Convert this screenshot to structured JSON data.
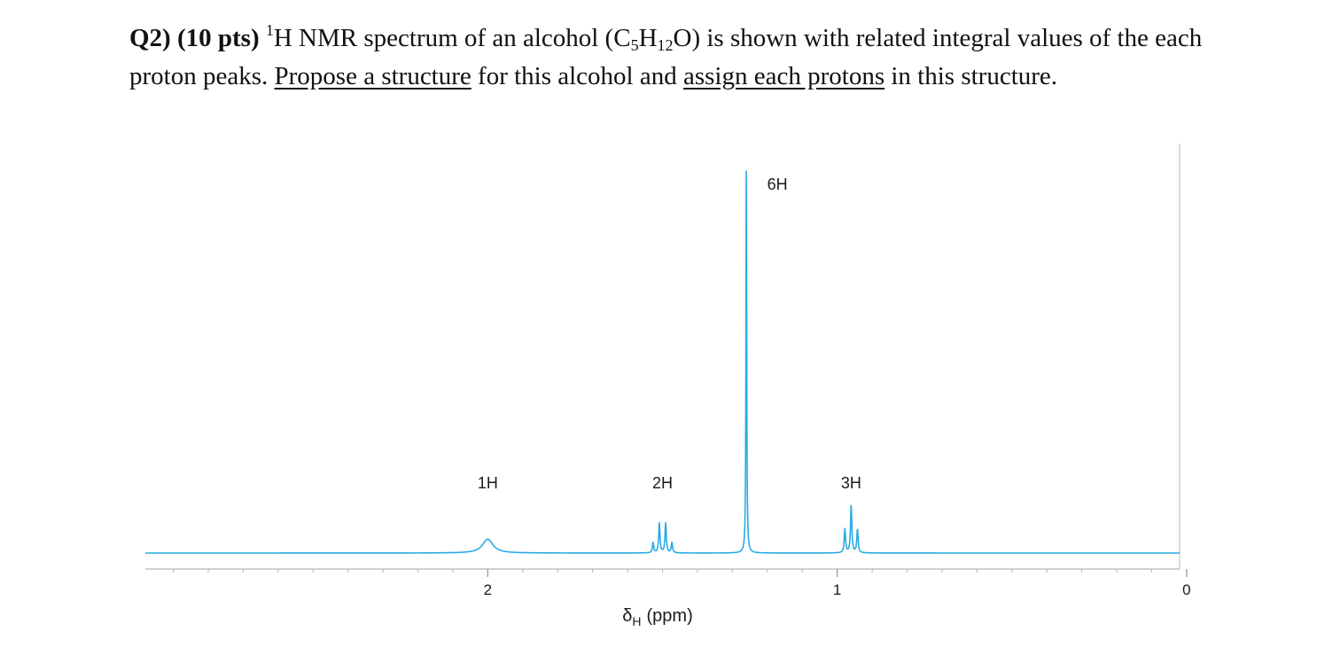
{
  "question": {
    "label": "Q2)",
    "points": "(10 pts)",
    "sup_one": "1",
    "text_a": "H NMR spectrum of an alcohol (C",
    "sub_5": "5",
    "text_b": "H",
    "sub_12": "12",
    "text_c": "O) is shown with related integral values of the each proton peaks.",
    "link_structure": "Propose a structure",
    "text_d": "for this alcohol and",
    "link_assign": "assign each protons",
    "text_e": "in this structure."
  },
  "chart_data": {
    "type": "line",
    "xlabel_main": "δ",
    "xlabel_sub": "H",
    "xlabel_unit": "(ppm)",
    "xlim": [
      2.98,
      0.02
    ],
    "xticks": [
      2,
      1,
      0
    ],
    "xtick_labels": [
      "2",
      "1",
      "0"
    ],
    "line_color": "#29abe2",
    "peaks": [
      {
        "shift": 2.0,
        "integral": "1H",
        "multiplicity": "broad singlet",
        "rel_height": 0.035
      },
      {
        "shift": 1.5,
        "integral": "2H",
        "multiplicity": "multiplet",
        "rel_height": 0.075
      },
      {
        "shift": 1.26,
        "integral": "6H",
        "multiplicity": "singlet",
        "rel_height": 1.0
      },
      {
        "shift": 0.96,
        "integral": "3H",
        "multiplicity": "triplet",
        "rel_height": 0.12
      }
    ]
  }
}
